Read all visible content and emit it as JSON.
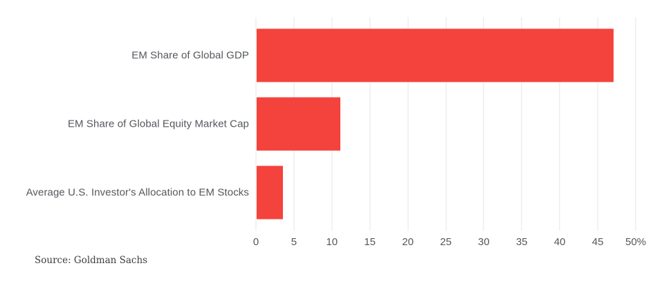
{
  "chart_data": {
    "type": "bar",
    "orientation": "horizontal",
    "title": "",
    "categories": [
      "EM Share of Global GDP",
      "EM Share of Global Equity Market Cap",
      "Average U.S. Investor's Allocation to EM Stocks"
    ],
    "values": [
      47,
      11,
      3.5
    ],
    "unit": "%",
    "xlabel": "",
    "ylabel": "",
    "xlim": [
      0,
      50
    ],
    "xticks": [
      0,
      5,
      10,
      15,
      20,
      25,
      30,
      35,
      40,
      45,
      50
    ],
    "xtick_labels": [
      "0",
      "5",
      "10",
      "15",
      "20",
      "25",
      "30",
      "35",
      "40",
      "45",
      "50%"
    ],
    "grid": true,
    "legend": "none",
    "bar_color": "#f4433c",
    "gridline_color": "#e6e6e6",
    "label_color": "#54575c"
  },
  "footer": {
    "source_label": "Source: Goldman Sachs"
  }
}
